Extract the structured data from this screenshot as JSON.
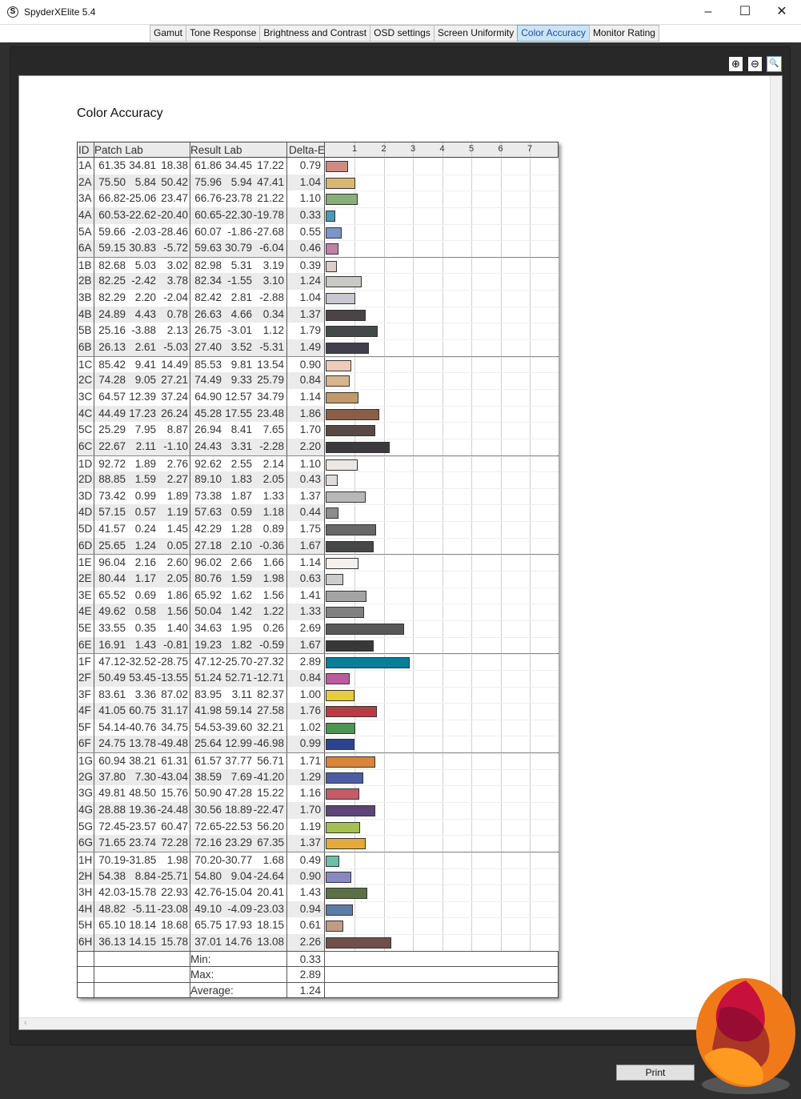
{
  "window": {
    "title": "SpyderXElite 5.4",
    "minimize": "–",
    "maximize": "☐",
    "close": "✕"
  },
  "tabs": [
    {
      "label": "Gamut"
    },
    {
      "label": "Tone Response"
    },
    {
      "label": "Brightness and Contrast"
    },
    {
      "label": "OSD settings"
    },
    {
      "label": "Screen Uniformity"
    },
    {
      "label": "Color Accuracy",
      "active": true
    },
    {
      "label": "Monitor Rating"
    }
  ],
  "zoom": {
    "zoom_in": "⊕",
    "zoom_out": "⊖",
    "zoom_fit": "🔍"
  },
  "report": {
    "title": "Color Accuracy",
    "headers": {
      "id": "ID",
      "patch": "Patch Lab",
      "result": "Result Lab",
      "delta": "Delta-E"
    },
    "scale_ticks": [
      "1",
      "2",
      "3",
      "4",
      "5",
      "6",
      "7"
    ],
    "scale_max": 8,
    "rows": [
      {
        "id": "1A",
        "patch": [
          "61.35",
          "34.81",
          "18.38"
        ],
        "result": [
          "61.86",
          "34.45",
          "17.22"
        ],
        "de": "0.79",
        "color": "#d08a80"
      },
      {
        "id": "2A",
        "patch": [
          "75.50",
          "5.84",
          "50.42"
        ],
        "result": [
          "75.96",
          "5.94",
          "47.41"
        ],
        "de": "1.04",
        "color": "#d8b870"
      },
      {
        "id": "3A",
        "patch": [
          "66.82",
          "-25.06",
          "23.47"
        ],
        "result": [
          "66.76",
          "-23.78",
          "21.22"
        ],
        "de": "1.10",
        "color": "#8aae7a"
      },
      {
        "id": "4A",
        "patch": [
          "60.53",
          "-22.62",
          "-20.40"
        ],
        "result": [
          "60.65",
          "-22.30",
          "-19.78"
        ],
        "de": "0.33",
        "color": "#4a9ab8"
      },
      {
        "id": "5A",
        "patch": [
          "59.66",
          "-2.03",
          "-28.46"
        ],
        "result": [
          "60.07",
          "-1.86",
          "-27.68"
        ],
        "de": "0.55",
        "color": "#7a96c8"
      },
      {
        "id": "6A",
        "patch": [
          "59.15",
          "30.83",
          "-5.72"
        ],
        "result": [
          "59.63",
          "30.79",
          "-6.04"
        ],
        "de": "0.46",
        "color": "#c080a8"
      },
      {
        "id": "1B",
        "patch": [
          "82.68",
          "5.03",
          "3.02"
        ],
        "result": [
          "82.98",
          "5.31",
          "3.19"
        ],
        "de": "0.39",
        "color": "#dccccc"
      },
      {
        "id": "2B",
        "patch": [
          "82.25",
          "-2.42",
          "3.78"
        ],
        "result": [
          "82.34",
          "-1.55",
          "3.10"
        ],
        "de": "1.24",
        "color": "#c8cac4"
      },
      {
        "id": "3B",
        "patch": [
          "82.29",
          "2.20",
          "-2.04"
        ],
        "result": [
          "82.42",
          "2.81",
          "-2.88"
        ],
        "de": "1.04",
        "color": "#c8c8d0"
      },
      {
        "id": "4B",
        "patch": [
          "24.89",
          "4.43",
          "0.78"
        ],
        "result": [
          "26.63",
          "4.66",
          "0.34"
        ],
        "de": "1.37",
        "color": "#4a4446"
      },
      {
        "id": "5B",
        "patch": [
          "25.16",
          "-3.88",
          "2.13"
        ],
        "result": [
          "26.75",
          "-3.01",
          "1.12"
        ],
        "de": "1.79",
        "color": "#444848"
      },
      {
        "id": "6B",
        "patch": [
          "26.13",
          "2.61",
          "-5.03"
        ],
        "result": [
          "27.40",
          "3.52",
          "-5.31"
        ],
        "de": "1.49",
        "color": "#40404c"
      },
      {
        "id": "1C",
        "patch": [
          "85.42",
          "9.41",
          "14.49"
        ],
        "result": [
          "85.53",
          "9.81",
          "13.54"
        ],
        "de": "0.90",
        "color": "#ecccb8"
      },
      {
        "id": "2C",
        "patch": [
          "74.28",
          "9.05",
          "27.21"
        ],
        "result": [
          "74.49",
          "9.33",
          "25.79"
        ],
        "de": "0.84",
        "color": "#d6b48e"
      },
      {
        "id": "3C",
        "patch": [
          "64.57",
          "12.39",
          "37.24"
        ],
        "result": [
          "64.90",
          "12.57",
          "34.79"
        ],
        "de": "1.14",
        "color": "#c09a68"
      },
      {
        "id": "4C",
        "patch": [
          "44.49",
          "17.23",
          "26.24"
        ],
        "result": [
          "45.28",
          "17.55",
          "23.48"
        ],
        "de": "1.86",
        "color": "#8a5e44"
      },
      {
        "id": "5C",
        "patch": [
          "25.29",
          "7.95",
          "8.87"
        ],
        "result": [
          "26.94",
          "8.41",
          "7.65"
        ],
        "de": "1.70",
        "color": "#5a4844"
      },
      {
        "id": "6C",
        "patch": [
          "22.67",
          "2.11",
          "-1.10"
        ],
        "result": [
          "24.43",
          "3.31",
          "-2.28"
        ],
        "de": "2.20",
        "color": "#3c3a3c"
      },
      {
        "id": "1D",
        "patch": [
          "92.72",
          "1.89",
          "2.76"
        ],
        "result": [
          "92.62",
          "2.55",
          "2.14"
        ],
        "de": "1.10",
        "color": "#ece8e6"
      },
      {
        "id": "2D",
        "patch": [
          "88.85",
          "1.59",
          "2.27"
        ],
        "result": [
          "89.10",
          "1.83",
          "2.05"
        ],
        "de": "0.43",
        "color": "#e0dcdc"
      },
      {
        "id": "3D",
        "patch": [
          "73.42",
          "0.99",
          "1.89"
        ],
        "result": [
          "73.38",
          "1.87",
          "1.33"
        ],
        "de": "1.37",
        "color": "#b8b8b8"
      },
      {
        "id": "4D",
        "patch": [
          "57.15",
          "0.57",
          "1.19"
        ],
        "result": [
          "57.63",
          "0.59",
          "1.18"
        ],
        "de": "0.44",
        "color": "#8c8c8c"
      },
      {
        "id": "5D",
        "patch": [
          "41.57",
          "0.24",
          "1.45"
        ],
        "result": [
          "42.29",
          "1.28",
          "0.89"
        ],
        "de": "1.75",
        "color": "#686868"
      },
      {
        "id": "6D",
        "patch": [
          "25.65",
          "1.24",
          "0.05"
        ],
        "result": [
          "27.18",
          "2.10",
          "-0.36"
        ],
        "de": "1.67",
        "color": "#484848"
      },
      {
        "id": "1E",
        "patch": [
          "96.04",
          "2.16",
          "2.60"
        ],
        "result": [
          "96.02",
          "2.66",
          "1.66"
        ],
        "de": "1.14",
        "color": "#f4f0ee"
      },
      {
        "id": "2E",
        "patch": [
          "80.44",
          "1.17",
          "2.05"
        ],
        "result": [
          "80.76",
          "1.59",
          "1.98"
        ],
        "de": "0.63",
        "color": "#cccccc"
      },
      {
        "id": "3E",
        "patch": [
          "65.52",
          "0.69",
          "1.86"
        ],
        "result": [
          "65.92",
          "1.62",
          "1.56"
        ],
        "de": "1.41",
        "color": "#a4a4a4"
      },
      {
        "id": "4E",
        "patch": [
          "49.62",
          "0.58",
          "1.56"
        ],
        "result": [
          "50.04",
          "1.42",
          "1.22"
        ],
        "de": "1.33",
        "color": "#808080"
      },
      {
        "id": "5E",
        "patch": [
          "33.55",
          "0.35",
          "1.40"
        ],
        "result": [
          "34.63",
          "1.95",
          "0.26"
        ],
        "de": "2.69",
        "color": "#585858"
      },
      {
        "id": "6E",
        "patch": [
          "16.91",
          "1.43",
          "-0.81"
        ],
        "result": [
          "19.23",
          "1.82",
          "-0.59"
        ],
        "de": "1.67",
        "color": "#383838"
      },
      {
        "id": "1F",
        "patch": [
          "47.12",
          "-32.52",
          "-28.75"
        ],
        "result": [
          "47.12",
          "-25.70",
          "-27.32"
        ],
        "de": "2.89",
        "color": "#0a7c9c"
      },
      {
        "id": "2F",
        "patch": [
          "50.49",
          "53.45",
          "-13.55"
        ],
        "result": [
          "51.24",
          "52.71",
          "-12.71"
        ],
        "de": "0.84",
        "color": "#c05aa0"
      },
      {
        "id": "3F",
        "patch": [
          "83.61",
          "3.36",
          "87.02"
        ],
        "result": [
          "83.95",
          "3.11",
          "82.37"
        ],
        "de": "1.00",
        "color": "#e8cc40"
      },
      {
        "id": "4F",
        "patch": [
          "41.05",
          "60.75",
          "31.17"
        ],
        "result": [
          "41.98",
          "59.14",
          "27.58"
        ],
        "de": "1.76",
        "color": "#b83c44"
      },
      {
        "id": "5F",
        "patch": [
          "54.14",
          "-40.76",
          "34.75"
        ],
        "result": [
          "54.53",
          "-39.60",
          "32.21"
        ],
        "de": "1.02",
        "color": "#4c9450"
      },
      {
        "id": "6F",
        "patch": [
          "24.75",
          "13.78",
          "-49.48"
        ],
        "result": [
          "25.64",
          "12.99",
          "-46.98"
        ],
        "de": "0.99",
        "color": "#2c4490"
      },
      {
        "id": "1G",
        "patch": [
          "60.94",
          "38.21",
          "61.31"
        ],
        "result": [
          "61.57",
          "37.77",
          "56.71"
        ],
        "de": "1.71",
        "color": "#d8843c"
      },
      {
        "id": "2G",
        "patch": [
          "37.80",
          "7.30",
          "-43.04"
        ],
        "result": [
          "38.59",
          "7.69",
          "-41.20"
        ],
        "de": "1.29",
        "color": "#4c5ca4"
      },
      {
        "id": "3G",
        "patch": [
          "49.81",
          "48.50",
          "15.76"
        ],
        "result": [
          "50.90",
          "47.28",
          "15.22"
        ],
        "de": "1.16",
        "color": "#c45c68"
      },
      {
        "id": "4G",
        "patch": [
          "28.88",
          "19.36",
          "-24.48"
        ],
        "result": [
          "30.56",
          "18.89",
          "-22.47"
        ],
        "de": "1.70",
        "color": "#5c4478"
      },
      {
        "id": "5G",
        "patch": [
          "72.45",
          "-23.57",
          "60.47"
        ],
        "result": [
          "72.65",
          "-22.53",
          "56.20"
        ],
        "de": "1.19",
        "color": "#a8c050"
      },
      {
        "id": "6G",
        "patch": [
          "71.65",
          "23.74",
          "72.28"
        ],
        "result": [
          "72.16",
          "23.29",
          "67.35"
        ],
        "de": "1.37",
        "color": "#e4a83c"
      },
      {
        "id": "1H",
        "patch": [
          "70.19",
          "-31.85",
          "1.98"
        ],
        "result": [
          "70.20",
          "-30.77",
          "1.68"
        ],
        "de": "0.49",
        "color": "#6cc0aa"
      },
      {
        "id": "2H",
        "patch": [
          "54.38",
          "8.84",
          "-25.71"
        ],
        "result": [
          "54.80",
          "9.04",
          "-24.64"
        ],
        "de": "0.90",
        "color": "#8a88c0"
      },
      {
        "id": "3H",
        "patch": [
          "42.03",
          "-15.78",
          "22.93"
        ],
        "result": [
          "42.76",
          "-15.04",
          "20.41"
        ],
        "de": "1.43",
        "color": "#5c7048"
      },
      {
        "id": "4H",
        "patch": [
          "48.82",
          "-5.11",
          "-23.08"
        ],
        "result": [
          "49.10",
          "-4.09",
          "-23.03"
        ],
        "de": "0.94",
        "color": "#5c7ca8"
      },
      {
        "id": "5H",
        "patch": [
          "65.10",
          "18.14",
          "18.68"
        ],
        "result": [
          "65.75",
          "17.93",
          "18.15"
        ],
        "de": "0.61",
        "color": "#c09c84"
      },
      {
        "id": "6H",
        "patch": [
          "36.13",
          "14.15",
          "15.78"
        ],
        "result": [
          "37.01",
          "14.76",
          "13.08"
        ],
        "de": "2.26",
        "color": "#705048"
      }
    ],
    "summary": [
      {
        "label": "Min:",
        "value": "0.33"
      },
      {
        "label": "Max:",
        "value": "2.89"
      },
      {
        "label": "Average:",
        "value": "1.24"
      }
    ]
  },
  "scrollbar": {
    "left_arrow": "‹"
  },
  "footer": {
    "print_label": "Print"
  }
}
